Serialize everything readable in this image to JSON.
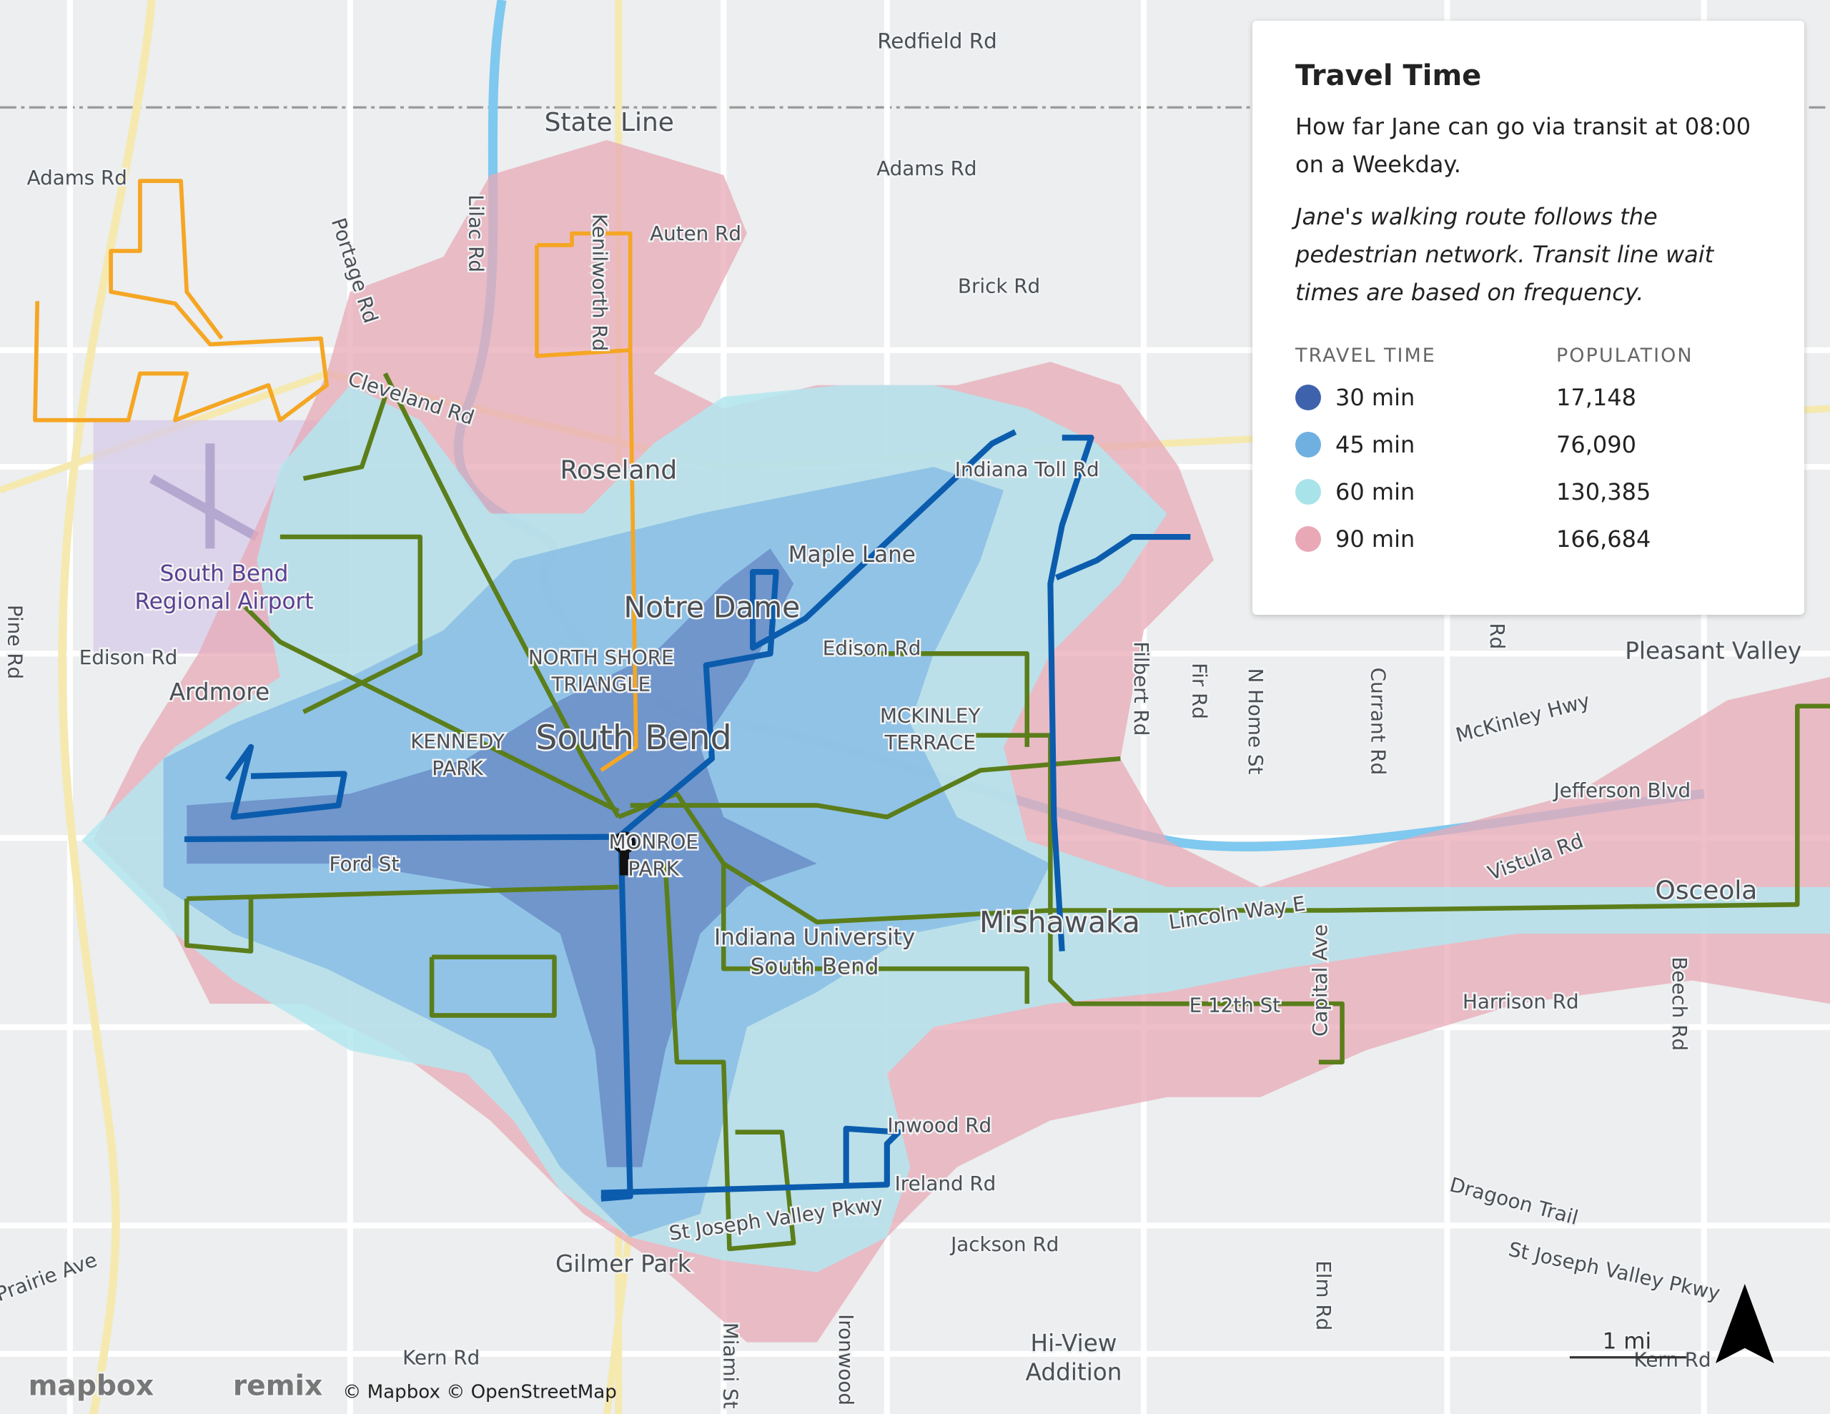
{
  "legend": {
    "title": "Travel Time",
    "description": "How far Jane can go via transit at 08:00 on a Weekday.",
    "note": "Jane's walking route follows the pedestrian network. Transit line wait times are based on frequency.",
    "column_headers": [
      "TRAVEL TIME",
      "POPULATION"
    ],
    "rows": [
      {
        "time": "30 min",
        "population": "17,148"
      },
      {
        "time": "45 min",
        "population": "76,090"
      },
      {
        "time": "60 min",
        "population": "130,385"
      },
      {
        "time": "90 min",
        "population": "166,684"
      }
    ]
  },
  "map_labels": [
    "Redfield Rd",
    "State Line",
    "Adams Rd",
    "Adams Rd",
    "Auten Rd",
    "Brick Rd",
    "Lilac Rd",
    "Portage Rd",
    "Kenilworth Rd",
    "Cleveland Rd",
    "Roseland",
    "Indiana Toll Rd",
    "Maple Lane",
    "Notre Dame",
    "South Bend",
    "Regional Airport",
    "Edison Rd",
    "Ardmore",
    "NORTH SHORE",
    "TRIANGLE",
    "Edison Rd",
    "MCKINLEY",
    "TERRACE",
    "South Bend",
    "KENNEDY",
    "PARK",
    "Pine Rd",
    "Filbert Rd",
    "Fir Rd",
    "N Home St",
    "Currant Rd",
    "Pleasant Valley",
    "McKinley Hwy",
    "Jefferson Blvd",
    "Vistula Rd",
    "Osceola",
    "Ford St",
    "MONROE",
    "PARK",
    "Indiana University",
    "South Bend",
    "Mishawaka",
    "Lincoln Way E",
    "Harrison Rd",
    "Capital Ave",
    "Beech Rd",
    "E 12th St",
    "Inwood Rd",
    "Ireland Rd",
    "Dragoon Trail",
    "St Joseph Valley Pkwy",
    "St Joseph Valley Pkwy",
    "Jackson Rd",
    "Gilmer Park",
    "Prairie Ave",
    "Miami St",
    "Ironwood",
    "Elm Rd",
    "Hi-View",
    "Addition",
    "Kern Rd",
    "Kern Rd",
    "Rd"
  ],
  "scale_bar": "1 mi",
  "attribution": {
    "mapbox_logo": "mapbox",
    "remix_logo": "remix",
    "credits": "© Mapbox © OpenStreetMap"
  }
}
